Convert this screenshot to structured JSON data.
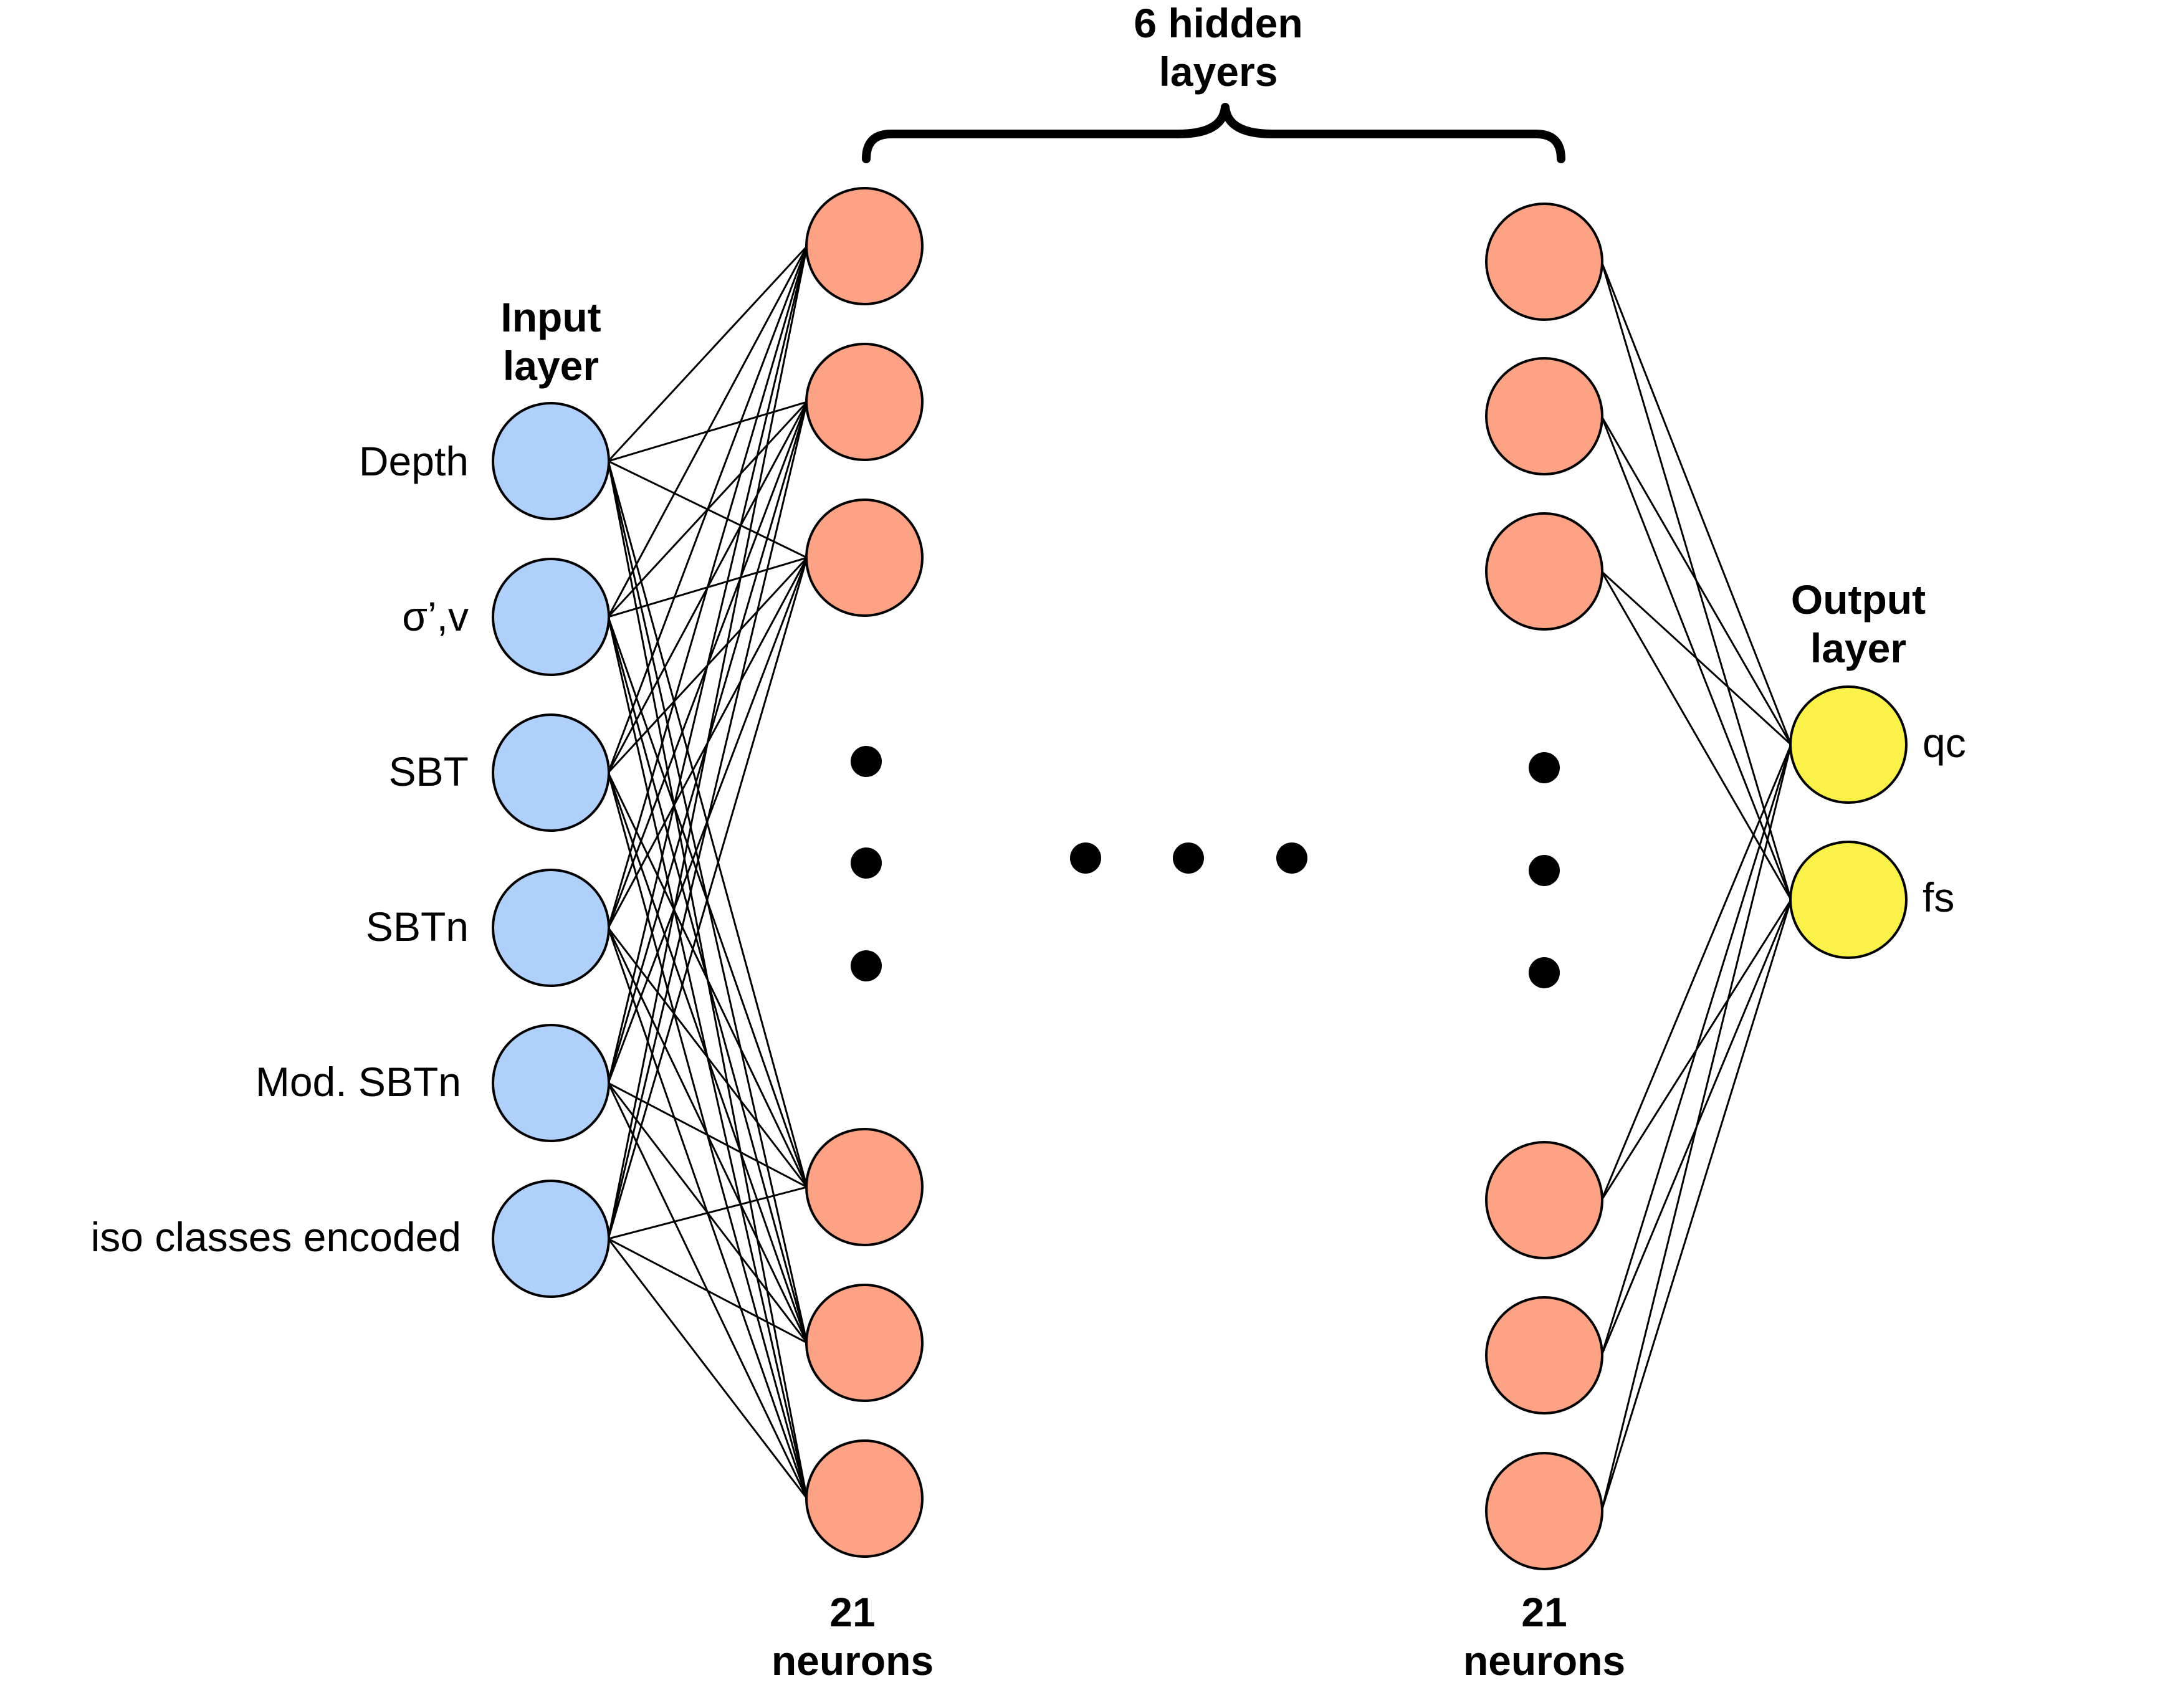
{
  "titles": {
    "hidden_top": "6 hidden",
    "hidden_bottom": "layers",
    "input_top": "Input",
    "input_bottom": "layer",
    "output_top": "Output",
    "output_bottom": "layer",
    "first_hidden_count_top": "21",
    "first_hidden_count_bottom": "neurons",
    "last_hidden_count_top": "21",
    "last_hidden_count_bottom": "neurons"
  },
  "inputs": [
    {
      "label": "Depth"
    },
    {
      "label": "σ’,v"
    },
    {
      "label": "SBT"
    },
    {
      "label": "SBTn"
    },
    {
      "label": "Mod. SBTn"
    },
    {
      "label": "iso classes encoded"
    }
  ],
  "outputs": [
    {
      "label": "qc"
    },
    {
      "label": "fs"
    }
  ],
  "colors": {
    "input_node": "#afd0fb",
    "hidden_node": "#fea286",
    "output_node": "#fbf249",
    "stroke": "#000000",
    "background": "#ffffff"
  }
}
